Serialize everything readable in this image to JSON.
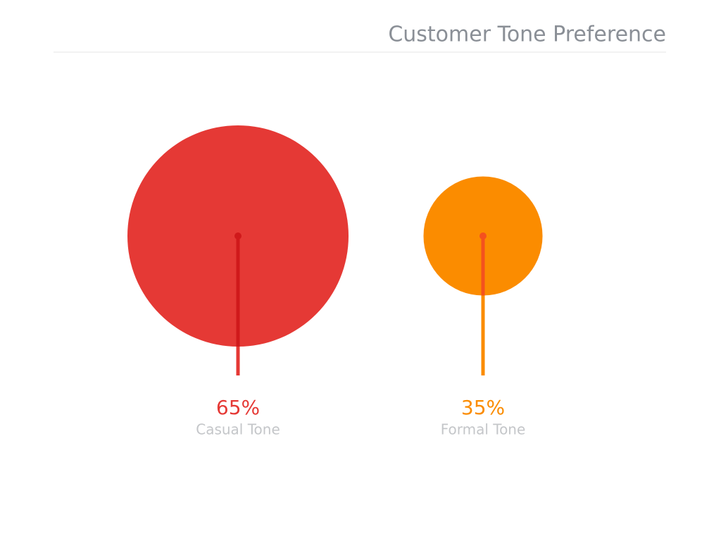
{
  "chart_data": {
    "type": "lollipop",
    "title": "Customer Tone Preference",
    "categories": [
      "Casual Tone",
      "Formal Tone"
    ],
    "values": [
      65,
      35
    ],
    "value_labels": [
      "65%",
      "35%"
    ],
    "colors": [
      "#e53935",
      "#fb8c00"
    ],
    "stem_colors": [
      "#d0191b",
      "#f4511e"
    ]
  }
}
